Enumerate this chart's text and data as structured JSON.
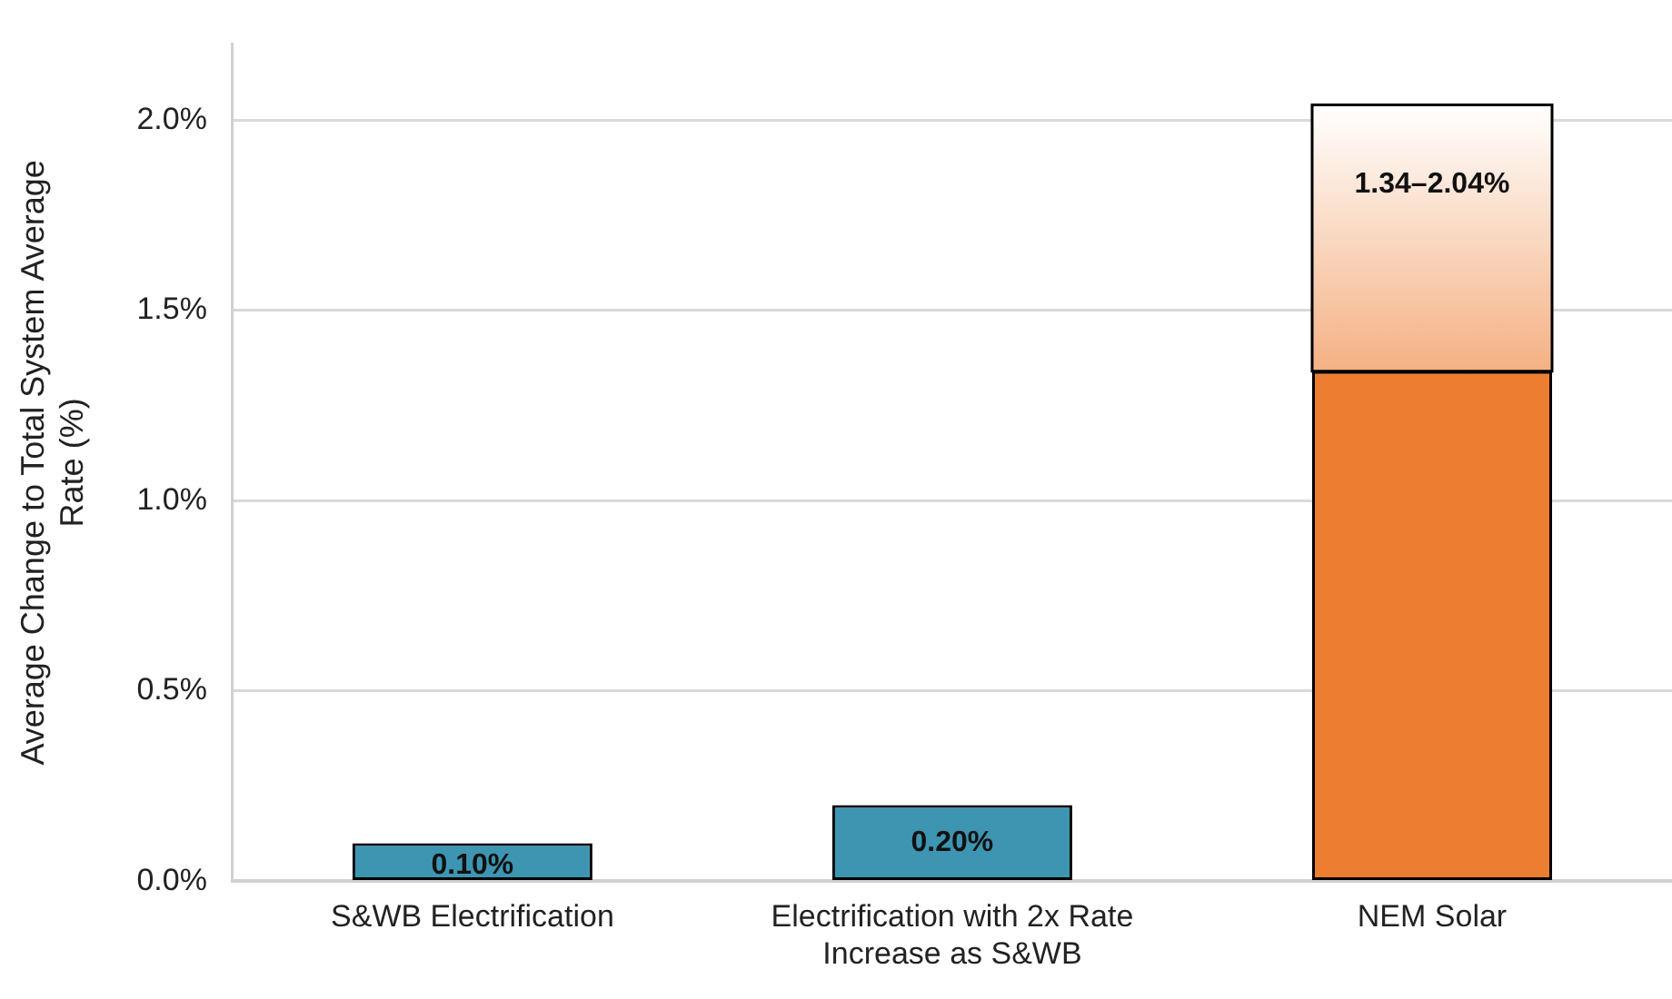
{
  "chart_data": {
    "type": "bar",
    "stacked": true,
    "ylabel": "Average Change to Total System Average Rate (%)",
    "categories": [
      "S&WB Electrification",
      "Electrification with 2x Rate Increase as S&WB",
      "NEM Solar"
    ],
    "series": [
      {
        "colors": [
          "#3d95b2",
          "#3d95b2",
          "#ed7d31"
        ],
        "values": [
          0.1,
          0.2,
          1.34
        ],
        "value_labels": [
          "0.10%",
          "0.20%",
          null
        ]
      },
      {
        "color": "#f4b183",
        "values": [
          null,
          null,
          0.7
        ]
      }
    ],
    "annotations": [
      "1.34–2.04%"
    ],
    "ylim": [
      0,
      2.2
    ],
    "yticks": [
      {
        "value": 0,
        "label": "0.0%"
      },
      {
        "value": 0.5,
        "label": "0.5%"
      },
      {
        "value": 1,
        "label": "1.0%"
      },
      {
        "value": 1.5,
        "label": "1.5%"
      },
      {
        "value": 2,
        "label": "2.0%"
      }
    ],
    "grid": "y",
    "legend": false
  }
}
